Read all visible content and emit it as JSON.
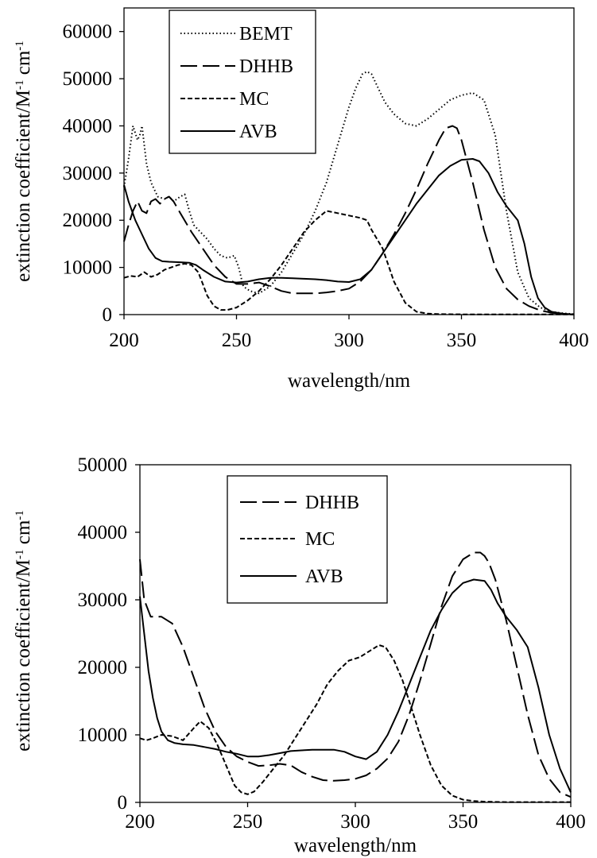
{
  "chart_data": [
    {
      "type": "line",
      "xlabel": "wavelength/nm",
      "ylabel": "extinction coefficient/M",
      "ylabel_sup1": "-1",
      "ylabel_mid": " cm",
      "ylabel_sup2": "-1",
      "xlim": [
        200,
        400
      ],
      "ylim": [
        0,
        65000
      ],
      "xticks": [
        "200",
        "250",
        "300",
        "350",
        "400"
      ],
      "yticks": [
        "0",
        "10000",
        "20000",
        "30000",
        "40000",
        "50000",
        "60000"
      ],
      "legend": "top-left",
      "series": [
        {
          "name": "BEMT",
          "style": "dotted",
          "x": [
            200,
            202,
            204,
            206,
            207,
            208,
            210,
            212,
            215,
            218,
            220,
            222,
            225,
            227,
            229,
            231,
            234,
            237,
            240,
            243,
            246,
            249,
            251,
            253,
            256,
            260,
            265,
            270,
            275,
            280,
            285,
            290,
            295,
            300,
            303,
            306,
            308,
            310,
            313,
            316,
            320,
            325,
            330,
            335,
            340,
            345,
            350,
            355,
            360,
            365,
            370,
            375,
            380,
            385,
            390,
            395,
            400
          ],
          "y": [
            27000,
            33000,
            40000,
            37000,
            38000,
            40000,
            32000,
            28000,
            25000,
            24500,
            25000,
            24000,
            25000,
            25500,
            22000,
            19000,
            17500,
            16000,
            14000,
            12500,
            12000,
            12500,
            10000,
            6000,
            5000,
            4500,
            6000,
            9000,
            13000,
            17000,
            22000,
            28000,
            36000,
            44000,
            48000,
            51000,
            51500,
            51000,
            48000,
            45000,
            42500,
            40500,
            40000,
            41500,
            43500,
            45500,
            46500,
            47000,
            45500,
            38000,
            22000,
            9000,
            3500,
            1500,
            600,
            300,
            100
          ]
        },
        {
          "name": "DHHB",
          "style": "long-dash",
          "x": [
            200,
            202,
            204,
            206,
            208,
            210,
            212,
            214,
            216,
            218,
            220,
            222,
            225,
            230,
            235,
            240,
            245,
            250,
            255,
            260,
            265,
            270,
            275,
            280,
            285,
            290,
            295,
            300,
            305,
            310,
            315,
            320,
            325,
            330,
            335,
            340,
            343,
            346,
            348,
            350,
            355,
            360,
            365,
            370,
            375,
            380,
            385,
            390,
            395,
            400
          ],
          "y": [
            15500,
            19000,
            22000,
            24000,
            22000,
            21500,
            24000,
            24500,
            23500,
            24500,
            25000,
            24000,
            21500,
            17500,
            14000,
            10500,
            8000,
            6500,
            6500,
            6800,
            6000,
            5000,
            4500,
            4500,
            4500,
            4700,
            5000,
            5500,
            7000,
            9500,
            13000,
            17000,
            21500,
            26500,
            32000,
            37000,
            39500,
            40000,
            39500,
            37000,
            28000,
            18000,
            10000,
            5500,
            3200,
            1800,
            900,
            400,
            150,
            50
          ]
        },
        {
          "name": "MC",
          "style": "short-dash",
          "x": [
            200,
            203,
            206,
            209,
            212,
            215,
            218,
            221,
            224,
            227,
            230,
            233,
            235,
            237,
            240,
            243,
            246,
            250,
            255,
            260,
            265,
            270,
            275,
            280,
            285,
            290,
            295,
            300,
            305,
            308,
            310,
            315,
            320,
            325,
            330,
            335,
            340,
            350,
            360,
            380,
            400
          ],
          "y": [
            7800,
            8200,
            8000,
            9000,
            8000,
            8500,
            9500,
            10000,
            10500,
            10800,
            10500,
            9000,
            6500,
            4000,
            1800,
            1000,
            1000,
            1500,
            3000,
            5000,
            7500,
            10500,
            14000,
            17500,
            20000,
            22000,
            21500,
            21000,
            20500,
            20000,
            18000,
            14000,
            7000,
            2500,
            600,
            200,
            100,
            50,
            50,
            50,
            50
          ]
        },
        {
          "name": "AVB",
          "style": "solid",
          "x": [
            200,
            202,
            205,
            208,
            211,
            214,
            217,
            220,
            225,
            229,
            232,
            235,
            240,
            245,
            250,
            255,
            260,
            265,
            270,
            275,
            280,
            285,
            290,
            295,
            300,
            305,
            310,
            315,
            320,
            325,
            330,
            335,
            340,
            345,
            350,
            355,
            358,
            362,
            366,
            370,
            375,
            378,
            381,
            384,
            387,
            390,
            395,
            400
          ],
          "y": [
            27500,
            24000,
            20000,
            17000,
            14000,
            12000,
            11300,
            11200,
            11100,
            11000,
            10500,
            9500,
            8000,
            7000,
            6800,
            7000,
            7500,
            7800,
            7800,
            7700,
            7600,
            7500,
            7300,
            7000,
            6900,
            7500,
            9500,
            13000,
            16500,
            20000,
            23500,
            26500,
            29500,
            31500,
            32800,
            33000,
            32500,
            30000,
            26000,
            23000,
            20000,
            15000,
            8000,
            3500,
            1500,
            600,
            200,
            0
          ]
        }
      ]
    },
    {
      "type": "line",
      "xlabel": "wavelength/nm",
      "ylabel": "extinction coefficient/M",
      "ylabel_sup1": "-1",
      "ylabel_mid": " cm",
      "ylabel_sup2": "-1",
      "xlim": [
        200,
        400
      ],
      "ylim": [
        0,
        50000
      ],
      "xticks": [
        "200",
        "250",
        "300",
        "350",
        "400"
      ],
      "yticks": [
        "0",
        "10000",
        "20000",
        "30000",
        "40000",
        "50000"
      ],
      "legend": "top-left",
      "series": [
        {
          "name": "DHHB",
          "style": "long-dash",
          "x": [
            200,
            202,
            205,
            210,
            215,
            220,
            225,
            230,
            235,
            240,
            245,
            250,
            255,
            260,
            265,
            270,
            275,
            280,
            285,
            290,
            295,
            300,
            305,
            310,
            315,
            320,
            325,
            330,
            335,
            340,
            345,
            350,
            355,
            358,
            360,
            362,
            365,
            370,
            375,
            380,
            385,
            390,
            395,
            400
          ],
          "y": [
            36000,
            30000,
            27500,
            27500,
            26500,
            23000,
            18500,
            14000,
            10500,
            8200,
            6800,
            6000,
            5400,
            5500,
            5700,
            5500,
            4500,
            3800,
            3300,
            3200,
            3300,
            3500,
            4000,
            5000,
            6500,
            9000,
            13000,
            18000,
            23500,
            29000,
            33500,
            36000,
            37000,
            37000,
            36500,
            35500,
            33000,
            27000,
            20000,
            13000,
            7000,
            3500,
            1500,
            800
          ]
        },
        {
          "name": "MC",
          "style": "short-dash",
          "x": [
            200,
            203,
            206,
            210,
            215,
            220,
            225,
            228,
            232,
            236,
            240,
            244,
            247,
            250,
            253,
            257,
            262,
            267,
            272,
            277,
            282,
            287,
            292,
            297,
            302,
            307,
            311,
            314,
            318,
            322,
            326,
            330,
            335,
            340,
            345,
            350,
            355,
            360,
            370,
            380,
            400
          ],
          "y": [
            9500,
            9200,
            9500,
            10000,
            9800,
            9200,
            11000,
            12000,
            11000,
            8500,
            5500,
            2500,
            1500,
            1200,
            1600,
            3000,
            5000,
            7000,
            9500,
            12000,
            14500,
            17500,
            19500,
            21000,
            21500,
            22500,
            23300,
            23000,
            21000,
            18000,
            14000,
            10000,
            5500,
            2500,
            1000,
            400,
            200,
            100,
            50,
            50,
            50
          ]
        },
        {
          "name": "AVB",
          "style": "solid",
          "x": [
            200,
            202,
            204,
            206,
            208,
            210,
            213,
            216,
            220,
            225,
            230,
            235,
            240,
            245,
            250,
            255,
            260,
            265,
            270,
            275,
            280,
            285,
            290,
            295,
            300,
            305,
            310,
            315,
            320,
            325,
            330,
            335,
            340,
            345,
            350,
            355,
            360,
            363,
            366,
            370,
            375,
            380,
            385,
            390,
            395,
            400
          ],
          "y": [
            30500,
            25000,
            19500,
            15500,
            12500,
            10500,
            9200,
            8800,
            8600,
            8500,
            8200,
            7900,
            7500,
            7200,
            6800,
            6800,
            7000,
            7300,
            7600,
            7700,
            7800,
            7800,
            7800,
            7500,
            6800,
            6400,
            7500,
            10000,
            13500,
            17500,
            21500,
            25500,
            28500,
            31000,
            32500,
            33000,
            32800,
            31500,
            29500,
            27500,
            25500,
            23000,
            17000,
            10000,
            5000,
            1500
          ]
        }
      ]
    }
  ]
}
